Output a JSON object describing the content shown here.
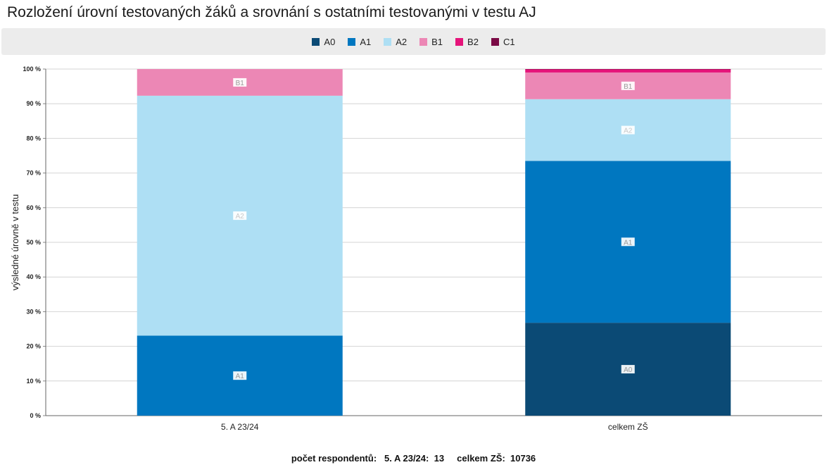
{
  "page": {
    "title": "Rozložení úrovní testovaných žáků a srovnání s ostatními testovanými v testu AJ"
  },
  "legend": [
    {
      "label": "A0",
      "color": "#0b4a75"
    },
    {
      "label": "A1",
      "color": "#0077c0"
    },
    {
      "label": "A2",
      "color": "#aedff4"
    },
    {
      "label": "B1",
      "color": "#ec87b5"
    },
    {
      "label": "B2",
      "color": "#e5147a"
    },
    {
      "label": "C1",
      "color": "#7a0a45"
    }
  ],
  "chart_data": {
    "type": "bar",
    "stacked": true,
    "ylabel": "výsledné úrovně v testu",
    "ylim": [
      0,
      100
    ],
    "yticks": [
      "0 %",
      "10 %",
      "20 %",
      "30 %",
      "40 %",
      "50 %",
      "60 %",
      "70 %",
      "80 %",
      "90 %",
      "100 %"
    ],
    "categories": [
      "5. A 23/24",
      "celkem ZŠ"
    ],
    "series": [
      {
        "name": "A0",
        "color": "#0b4a75",
        "values": [
          0,
          26.8
        ]
      },
      {
        "name": "A1",
        "color": "#0077c0",
        "values": [
          23.1,
          46.7
        ]
      },
      {
        "name": "A2",
        "color": "#aedff4",
        "values": [
          69.2,
          17.8
        ]
      },
      {
        "name": "B1",
        "color": "#ec87b5",
        "values": [
          7.7,
          7.7
        ]
      },
      {
        "name": "B2",
        "color": "#e5147a",
        "values": [
          0,
          0.9
        ]
      },
      {
        "name": "C1",
        "color": "#7a0a45",
        "values": [
          0,
          0.1
        ]
      }
    ],
    "grid": true,
    "legend_position": "top"
  },
  "footer": {
    "label": "počet respondentů:",
    "items": [
      {
        "name": "5. A 23/24:",
        "value": "13"
      },
      {
        "name": "celkem ZŠ:",
        "value": "10736"
      }
    ]
  }
}
